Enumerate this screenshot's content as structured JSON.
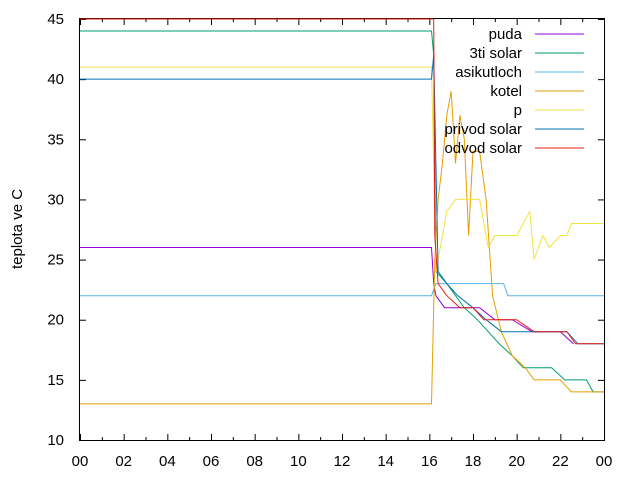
{
  "chart_data": {
    "type": "line",
    "title": "",
    "xlabel": "",
    "ylabel": "teplota ve C",
    "xlim": [
      0,
      24
    ],
    "ylim": [
      10,
      45
    ],
    "x_ticks": [
      "00",
      "02",
      "04",
      "06",
      "08",
      "10",
      "12",
      "14",
      "16",
      "18",
      "20",
      "22",
      "00"
    ],
    "y_ticks": [
      10,
      15,
      20,
      25,
      30,
      35,
      40,
      45
    ],
    "grid": false,
    "legend_position": "top-right",
    "series": [
      {
        "name": "puda",
        "color": "#9400d3",
        "x": [
          0,
          16.1,
          16.2,
          16.3,
          16.7,
          17.5,
          18.3,
          19.0,
          19.8,
          20.7,
          21.2,
          22.0,
          22.6
        ],
        "y": [
          26,
          26,
          23,
          22,
          21,
          21,
          21,
          20,
          20,
          19,
          19,
          19,
          18
        ]
      },
      {
        "name": "3ti solar",
        "color": "#009e73",
        "x": [
          0,
          16.1,
          16.2,
          16.3,
          16.8,
          17.2,
          17.6,
          18.2,
          18.7,
          19.2,
          19.8,
          20.3,
          20.9,
          21.6,
          22.2,
          22.7,
          23.2,
          23.5,
          24
        ],
        "y": [
          44,
          44,
          42,
          24,
          23,
          22,
          21,
          20,
          19,
          18,
          17,
          16,
          16,
          16,
          15,
          15,
          15,
          14,
          14
        ]
      },
      {
        "name": "asikutloch",
        "color": "#56b4e9",
        "x": [
          0,
          16.1,
          16.3,
          16.5,
          17.2,
          17.6,
          19.4,
          19.6,
          24
        ],
        "y": [
          22,
          22,
          23,
          23,
          23,
          23,
          23,
          22,
          22
        ]
      },
      {
        "name": "kotel",
        "color": "#e69f00",
        "x": [
          0,
          16.1,
          16.25,
          16.4,
          16.6,
          16.8,
          17.0,
          17.2,
          17.4,
          17.6,
          17.8,
          18.0,
          18.3,
          18.6,
          18.9,
          19.3,
          19.8,
          20.4,
          20.8,
          21.5,
          22.0,
          22.5,
          24
        ],
        "y": [
          13,
          13,
          25,
          30,
          33,
          37,
          39,
          33,
          37,
          35,
          27,
          34,
          34,
          30,
          22,
          19,
          17,
          16,
          15,
          15,
          15,
          14,
          14
        ]
      },
      {
        "name": "p",
        "color": "#f0e442",
        "x": [
          0,
          16.1,
          16.3,
          16.6,
          16.8,
          17.2,
          17.7,
          18.0,
          18.3,
          18.5,
          18.7,
          19.0,
          19.5,
          20.0,
          20.3,
          20.6,
          20.8,
          21.0,
          21.2,
          21.5,
          22.0,
          22.3,
          22.5,
          24
        ],
        "y": [
          41,
          41,
          24,
          27,
          29,
          30,
          30,
          30,
          30,
          28,
          26,
          27,
          27,
          27,
          28,
          29,
          25,
          26,
          27,
          26,
          27,
          27,
          28,
          28
        ]
      },
      {
        "name": "privod solar",
        "color": "#0072b2",
        "x": [
          0,
          16.1,
          16.2,
          16.4,
          16.8,
          17.3,
          18.0,
          18.6,
          19.3,
          19.8,
          20.4,
          21.0,
          21.7,
          22.3,
          22.8,
          24
        ],
        "y": [
          40,
          40,
          42,
          24,
          23,
          22,
          21,
          20,
          19,
          19,
          19,
          19,
          19,
          19,
          18,
          18
        ]
      },
      {
        "name": "odvod solar",
        "color": "#e51e10",
        "x": [
          0,
          16.1,
          16.2,
          16.25,
          16.4,
          16.8,
          17.4,
          18.0,
          18.5,
          19.2,
          20.0,
          20.8,
          21.5,
          22.3,
          22.7,
          24
        ],
        "y": [
          45,
          45,
          45,
          27,
          23,
          22,
          21,
          21,
          20,
          20,
          20,
          19,
          19,
          19,
          18,
          18
        ]
      }
    ]
  }
}
